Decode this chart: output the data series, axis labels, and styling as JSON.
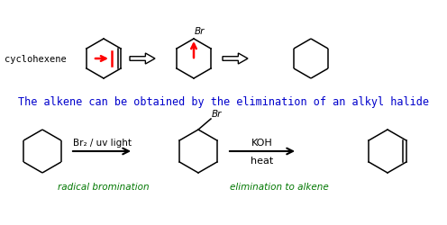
{
  "bg_color": "#ffffff",
  "title_text": "The alkene can be obtained by the elimination of an alkyl halide",
  "title_color": "#0000cc",
  "title_fontsize": 8.5,
  "label_cyclohexene": "cyclohexene",
  "label_radical": "radical bromination",
  "label_elimination": "elimination to alkene",
  "label_color_green": "#007700",
  "label_br2": "Br₂ / uv light",
  "label_koh": "KOH",
  "label_heat": "heat",
  "red_color": "#ff0000"
}
